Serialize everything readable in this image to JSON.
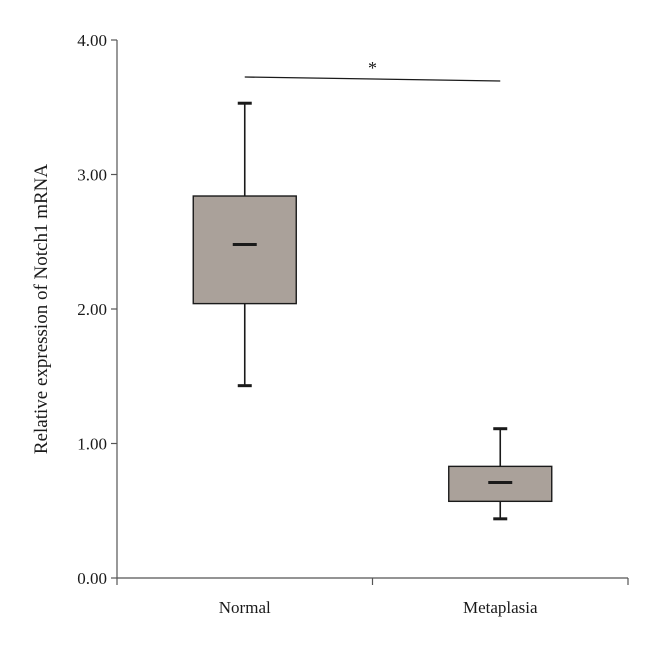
{
  "chart_data": {
    "type": "box",
    "title": "",
    "xlabel": "",
    "ylabel": "Relative expression of Notch1 mRNA",
    "ylim": [
      0,
      4
    ],
    "yticks": [
      {
        "value": 0,
        "label": "0.00"
      },
      {
        "value": 1,
        "label": "1.00"
      },
      {
        "value": 2,
        "label": "2.00"
      },
      {
        "value": 3,
        "label": "3.00"
      },
      {
        "value": 4,
        "label": "4.00"
      }
    ],
    "categories": [
      "Normal",
      "Metaplasia"
    ],
    "boxes": [
      {
        "category": "Normal",
        "min": 1.43,
        "q1": 2.04,
        "median": 2.48,
        "q3": 2.84,
        "max": 3.53
      },
      {
        "category": "Metaplasia",
        "min": 0.44,
        "q1": 0.57,
        "median": 0.71,
        "q3": 0.83,
        "max": 1.11
      }
    ],
    "significance": {
      "label": "*",
      "between": [
        "Normal",
        "Metaplasia"
      ],
      "y": 3.71
    },
    "grid": false,
    "legend": "none",
    "colors": {
      "box_fill": "#aaa19a",
      "box_stroke": "#1a1a1a",
      "axis": "#555555"
    }
  }
}
